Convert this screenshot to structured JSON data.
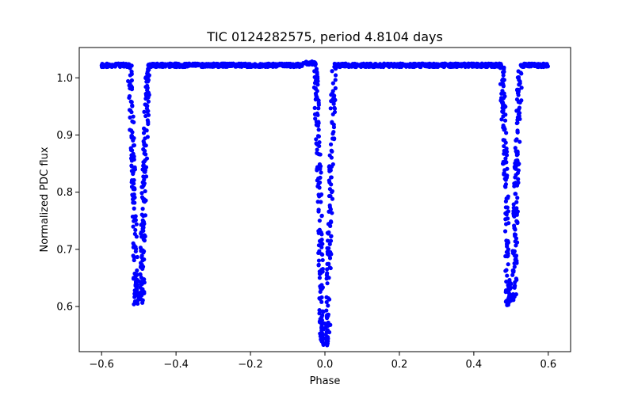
{
  "chart_data": {
    "type": "scatter",
    "title": "TIC 0124282575, period 4.8104 days",
    "xlabel": "Phase",
    "ylabel": "Normalized PDC flux",
    "xlim": [
      -0.66,
      0.66
    ],
    "ylim": [
      0.521,
      1.053
    ],
    "xticks": [
      -0.6,
      -0.4,
      -0.2,
      0.0,
      0.2,
      0.4,
      0.6
    ],
    "xtick_labels": [
      "−0.6",
      "−0.4",
      "−0.2",
      "0.0",
      "0.2",
      "0.4",
      "0.6"
    ],
    "yticks": [
      0.6,
      0.7,
      0.8,
      0.9,
      1.0
    ],
    "ytick_labels": [
      "0.6",
      "0.7",
      "0.8",
      "0.9",
      "1.0"
    ],
    "grid": false,
    "marker_color": "#0000ff",
    "series": [
      {
        "name": "PDC flux",
        "x_range": [
          -0.6,
          0.6
        ],
        "baseline_flux": 1.022,
        "eclipses": [
          {
            "label": "secondary",
            "center": -0.5,
            "half_width": 0.025,
            "min_flux": 0.605
          },
          {
            "label": "primary",
            "center": 0.0,
            "half_width": 0.025,
            "min_flux": 0.532
          },
          {
            "label": "secondary",
            "center": 0.5,
            "half_width": 0.025,
            "min_flux": 0.603
          }
        ],
        "notes": "Phase-folded light curve; points from -0.6 to 0.6 with three dips"
      }
    ]
  }
}
